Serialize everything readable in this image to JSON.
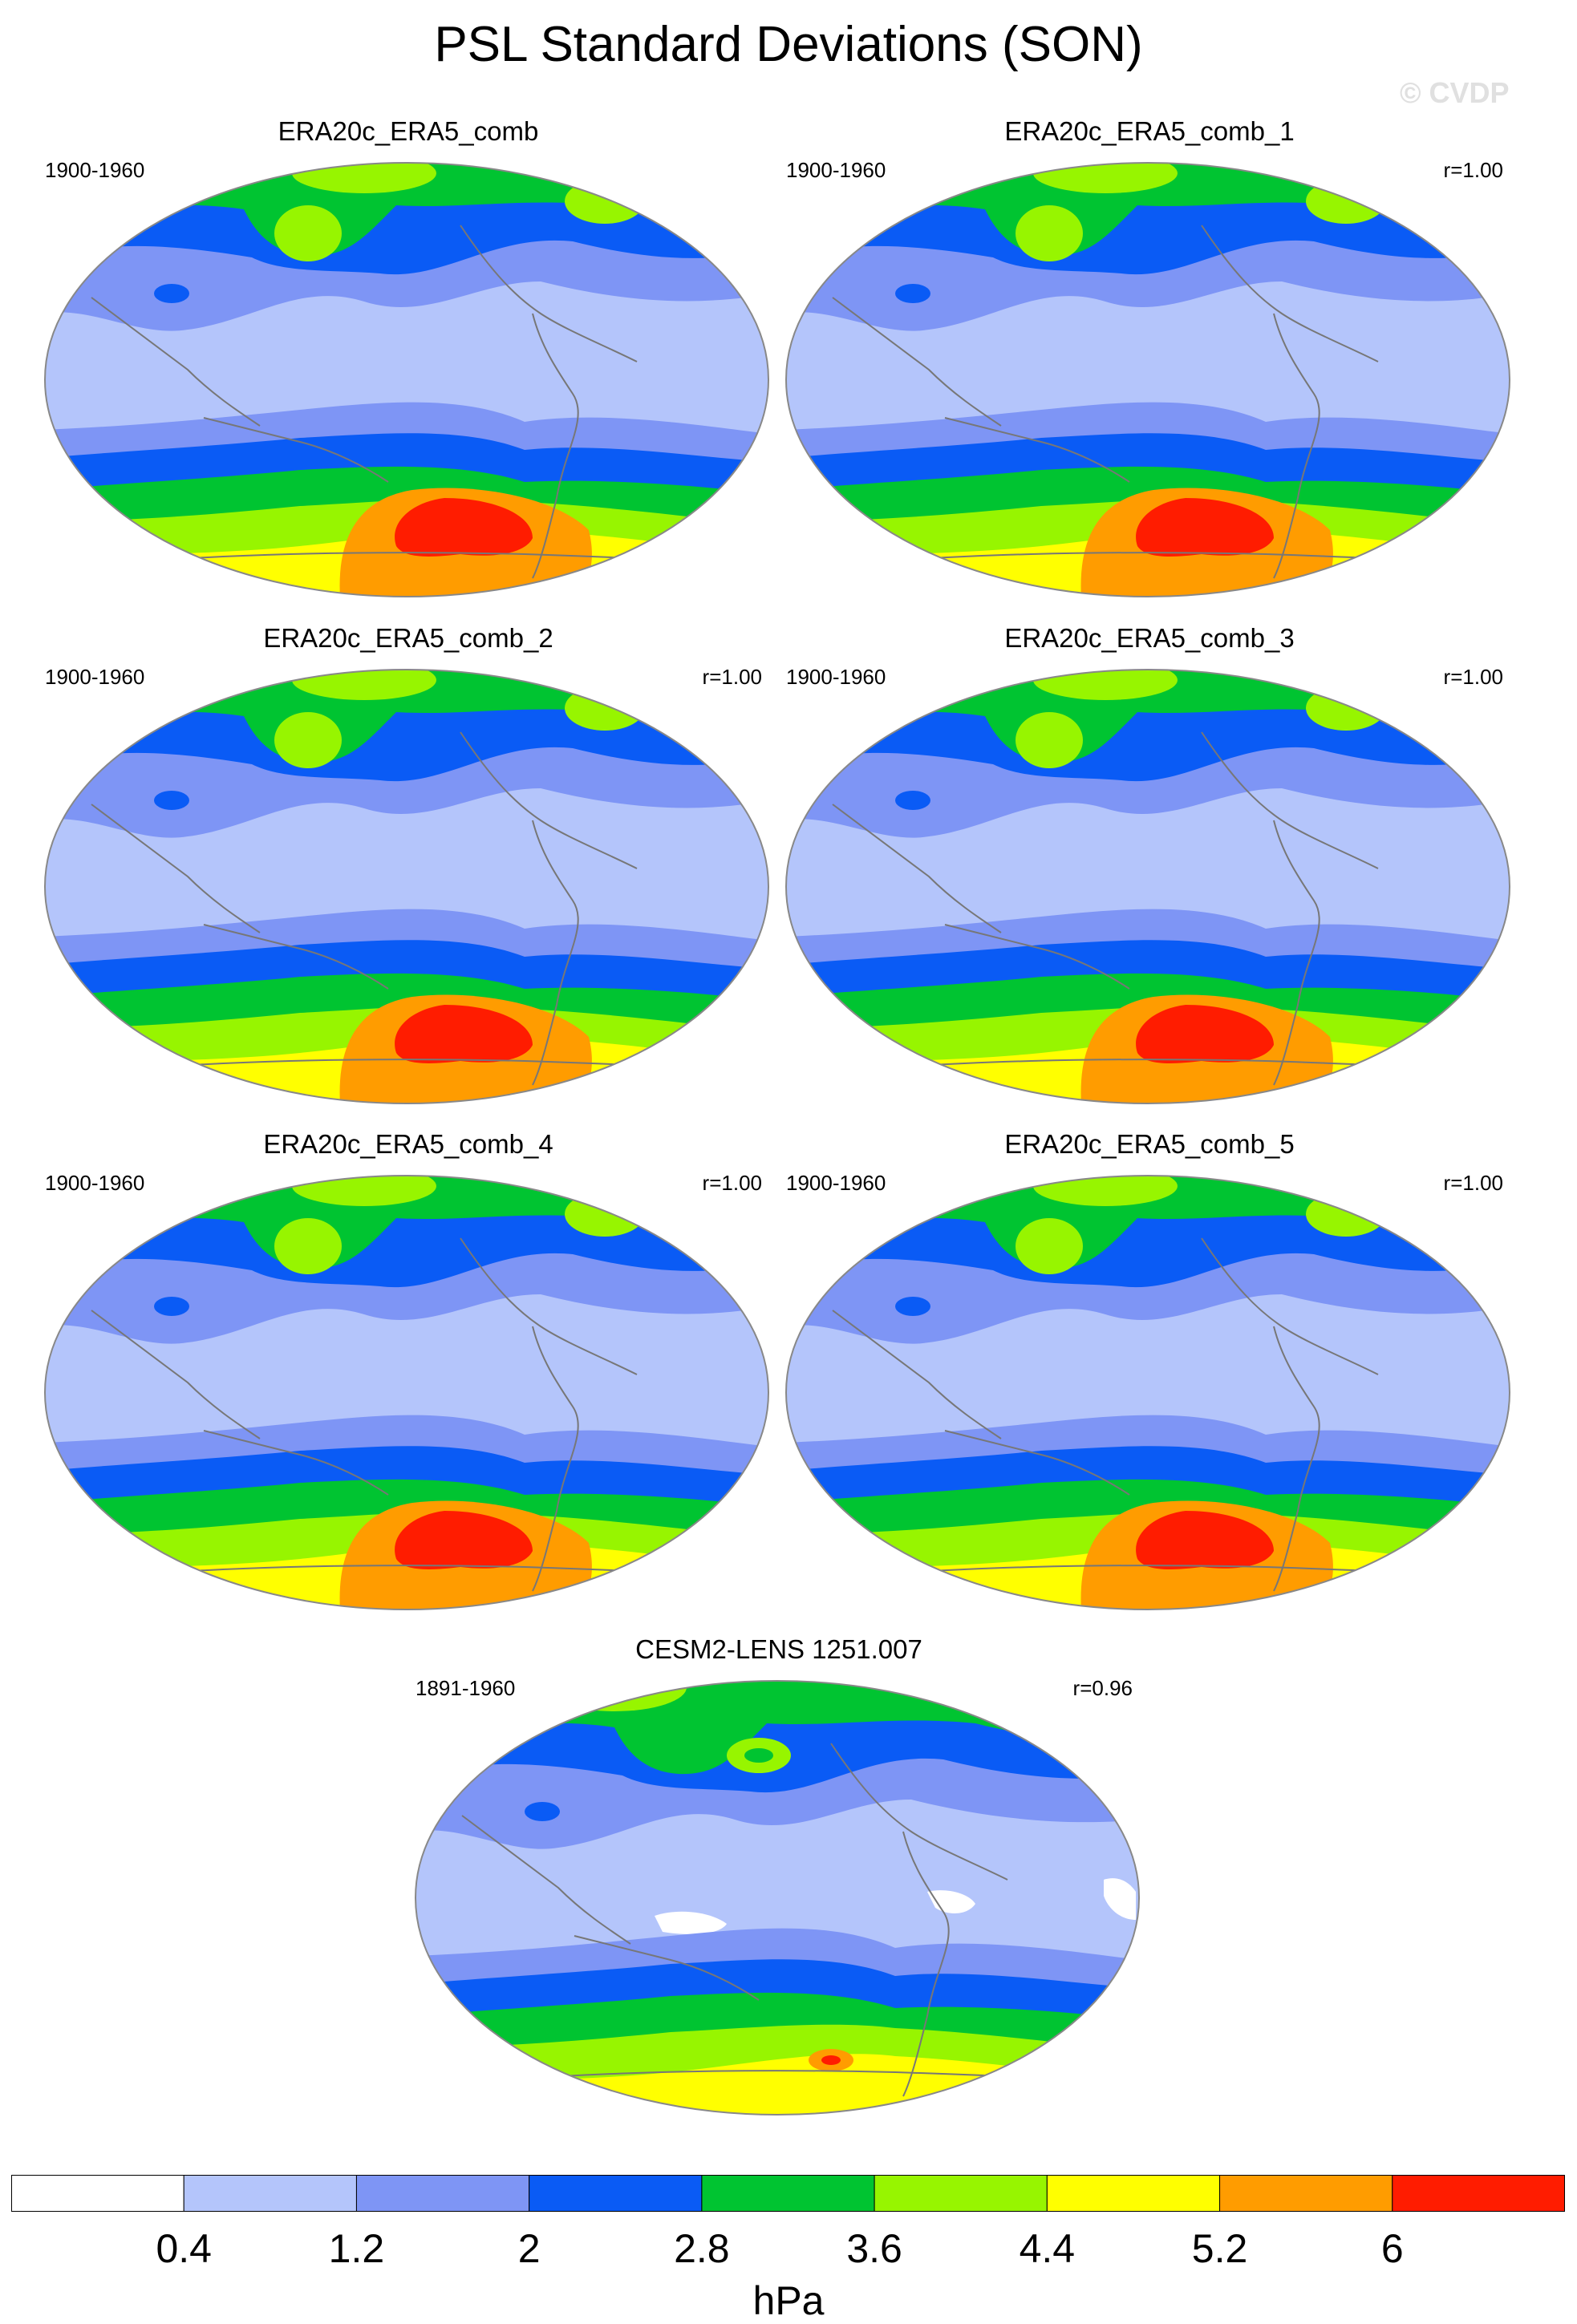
{
  "figure": {
    "title": "PSL Standard Deviations (SON)",
    "watermark": "© CVDP"
  },
  "panels": [
    {
      "title": "ERA20c_ERA5_comb",
      "period": "1900-1960",
      "corr": ""
    },
    {
      "title": "ERA20c_ERA5_comb_1",
      "period": "1900-1960",
      "corr": "r=1.00"
    },
    {
      "title": "ERA20c_ERA5_comb_2",
      "period": "1900-1960",
      "corr": "r=1.00"
    },
    {
      "title": "ERA20c_ERA5_comb_3",
      "period": "1900-1960",
      "corr": "r=1.00"
    },
    {
      "title": "ERA20c_ERA5_comb_4",
      "period": "1900-1960",
      "corr": "r=1.00"
    },
    {
      "title": "ERA20c_ERA5_comb_5",
      "period": "1900-1960",
      "corr": "r=1.00"
    },
    {
      "title": "CESM2-LENS 1251.007",
      "period": "1891-1960",
      "corr": "r=0.96"
    }
  ],
  "colorbar": {
    "units": "hPa",
    "labels": [
      "0.4",
      "1.2",
      "2",
      "2.8",
      "3.6",
      "4.4",
      "5.2",
      "6"
    ],
    "colors": [
      "#ffffff",
      "#b4c5fb",
      "#7e95f5",
      "#0a5bf5",
      "#00c431",
      "#97f500",
      "#ffff00",
      "#ff9c00",
      "#ff1c00"
    ]
  }
}
